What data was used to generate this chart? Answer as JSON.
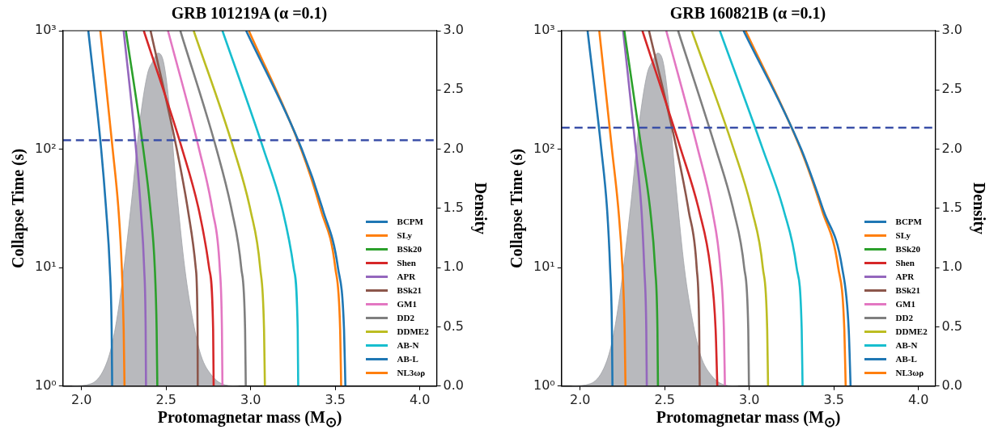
{
  "chart_data": [
    {
      "type": "line",
      "title": "GRB 101219A (α =0.1)",
      "xlabel": "Protomagnetar mass (M$_{⊙}$)",
      "ylabel": "Collapse Time (s)",
      "y2label": "Density",
      "xlim": [
        1.89,
        4.1
      ],
      "xticks": [
        {
          "value": 2,
          "label": "2.0"
        },
        {
          "value": 2.5,
          "label": "2.5"
        },
        {
          "value": 3,
          "label": "3.0"
        },
        {
          "value": 3.5,
          "label": "3.5"
        },
        {
          "value": 4,
          "label": "4.0"
        }
      ],
      "ylim": [
        1,
        1000
      ],
      "yticks": [
        {
          "value": 1,
          "label": "10⁰"
        },
        {
          "value": 10,
          "label": "10¹"
        },
        {
          "value": 100,
          "label": "10²"
        },
        {
          "value": 1000,
          "label": "10³"
        }
      ],
      "y2lim": [
        0,
        3
      ],
      "y2ticks": [
        {
          "value": 0,
          "label": "0.0"
        },
        {
          "value": 0.5,
          "label": "0.5"
        },
        {
          "value": 1,
          "label": "1.0"
        },
        {
          "value": 1.5,
          "label": "1.5"
        },
        {
          "value": 2,
          "label": "2.0"
        },
        {
          "value": 2.5,
          "label": "2.5"
        },
        {
          "value": 3,
          "label": "3.0"
        }
      ],
      "log": "y",
      "grid": false,
      "legend": "bottom right",
      "marker": "none",
      "line_style": "solid",
      "ref_lines": [
        {
          "axis": "y",
          "value": 119,
          "color": "#3a4fa8",
          "line_style": "dashed"
        }
      ],
      "series": [
        {
          "type": "area",
          "axis": "y2",
          "color": "#b8b9bd",
          "x": [
            1.944,
            2.056,
            2.135,
            2.183,
            2.23,
            2.294,
            2.341,
            2.389,
            2.421,
            2.452,
            2.484,
            2.516,
            2.563,
            2.611,
            2.659,
            2.706,
            2.77,
            2.849,
            2.929
          ],
          "values": [
            0,
            0.02,
            0.15,
            0.37,
            0.77,
            1.54,
            2.19,
            2.63,
            2.74,
            2.81,
            2.74,
            2.41,
            1.64,
            0.99,
            0.55,
            0.26,
            0.09,
            0.01,
            0
          ]
        },
        {
          "name": "BCPM",
          "color": "#1f77b4",
          "x": [
            2.04,
            2.116,
            2.146,
            2.167,
            2.178,
            2.181
          ],
          "values": [
            1000,
            100,
            30,
            10,
            3,
            1
          ]
        },
        {
          "name": "SLy",
          "color": "#ff7f0e",
          "x": [
            2.111,
            2.184,
            2.219,
            2.238,
            2.249,
            2.254
          ],
          "values": [
            1000,
            100,
            30,
            10,
            3,
            1
          ]
        },
        {
          "name": "BSk20",
          "color": "#2ca02c",
          "x": [
            2.262,
            2.365,
            2.408,
            2.433,
            2.444,
            2.448
          ],
          "values": [
            1000,
            100,
            30,
            10,
            3,
            1
          ]
        },
        {
          "name": "Shen",
          "color": "#d62728",
          "x": [
            2.368,
            2.595,
            2.695,
            2.754,
            2.778,
            2.781
          ],
          "values": [
            1000,
            100,
            30,
            10,
            3,
            1
          ]
        },
        {
          "name": "APR",
          "color": "#9467bd",
          "x": [
            2.249,
            2.322,
            2.351,
            2.37,
            2.379,
            2.381
          ],
          "values": [
            1000,
            100,
            30,
            10,
            3,
            1
          ]
        },
        {
          "name": "BSk21",
          "color": "#8c564b",
          "x": [
            2.408,
            2.563,
            2.63,
            2.675,
            2.686,
            2.687
          ],
          "values": [
            1000,
            100,
            30,
            10,
            3,
            1
          ]
        },
        {
          "name": "GM1",
          "color": "#e377c2",
          "x": [
            2.511,
            2.695,
            2.775,
            2.817,
            2.83,
            2.833
          ],
          "values": [
            1000,
            100,
            30,
            10,
            3,
            1
          ]
        },
        {
          "name": "DD2",
          "color": "#7f7f7f",
          "x": [
            2.584,
            2.798,
            2.889,
            2.944,
            2.967,
            2.971
          ],
          "values": [
            1000,
            100,
            30,
            10,
            3,
            1
          ]
        },
        {
          "name": "DDME2",
          "color": "#bcbd22",
          "x": [
            2.663,
            2.9,
            3.0,
            3.056,
            3.079,
            3.084
          ],
          "values": [
            1000,
            100,
            30,
            10,
            3,
            1
          ]
        },
        {
          "name": "AB-N",
          "color": "#17becf",
          "x": [
            2.833,
            3.076,
            3.19,
            3.254,
            3.278,
            3.281
          ],
          "values": [
            1000,
            100,
            30,
            10,
            3,
            1
          ]
        },
        {
          "name": "AB-L",
          "color": "#1f77b4",
          "x": [
            2.973,
            3.302,
            3.429,
            3.516,
            3.552,
            3.56
          ],
          "values": [
            1000,
            100,
            30,
            10,
            3,
            1
          ]
        },
        {
          "name": "NL3ωρ",
          "color": "#ff7f0e",
          "x": [
            2.989,
            3.298,
            3.417,
            3.5,
            3.529,
            3.535
          ],
          "values": [
            1000,
            100,
            30,
            10,
            3,
            1
          ]
        }
      ]
    },
    {
      "type": "line",
      "title": "GRB 160821B (α =0.1)",
      "xlabel": "Protomagnetar mass (M$_{⊙}$)",
      "ylabel": "Collapse Time (s)",
      "y2label": "Density",
      "xlim": [
        1.89,
        4.1
      ],
      "xticks": [
        {
          "value": 2,
          "label": "2.0"
        },
        {
          "value": 2.5,
          "label": "2.5"
        },
        {
          "value": 3,
          "label": "3.0"
        },
        {
          "value": 3.5,
          "label": "3.5"
        },
        {
          "value": 4,
          "label": "4.0"
        }
      ],
      "ylim": [
        1,
        1000
      ],
      "yticks": [
        {
          "value": 1,
          "label": "10⁰"
        },
        {
          "value": 10,
          "label": "10¹"
        },
        {
          "value": 100,
          "label": "10²"
        },
        {
          "value": 1000,
          "label": "10³"
        }
      ],
      "y2lim": [
        0,
        3
      ],
      "y2ticks": [
        {
          "value": 0,
          "label": "0.0"
        },
        {
          "value": 0.5,
          "label": "0.5"
        },
        {
          "value": 1,
          "label": "1.0"
        },
        {
          "value": 1.5,
          "label": "1.5"
        },
        {
          "value": 2,
          "label": "2.0"
        },
        {
          "value": 2.5,
          "label": "2.5"
        },
        {
          "value": 3,
          "label": "3.0"
        }
      ],
      "log": "y",
      "grid": false,
      "legend": "bottom right",
      "marker": "none",
      "line_style": "solid",
      "ref_lines": [
        {
          "axis": "y",
          "value": 152,
          "color": "#3a4fa8",
          "line_style": "dashed"
        }
      ],
      "series": [
        {
          "type": "area",
          "axis": "y2",
          "color": "#b8b9bd",
          "x": [
            1.95,
            2.06,
            2.14,
            2.188,
            2.235,
            2.3,
            2.347,
            2.395,
            2.427,
            2.458,
            2.49,
            2.522,
            2.57,
            2.617,
            2.665,
            2.712,
            2.776,
            2.855,
            2.935
          ],
          "values": [
            0,
            0.02,
            0.15,
            0.37,
            0.77,
            1.54,
            2.19,
            2.63,
            2.74,
            2.81,
            2.74,
            2.41,
            1.64,
            0.99,
            0.55,
            0.26,
            0.09,
            0.01,
            0
          ]
        },
        {
          "name": "BCPM",
          "color": "#1f77b4",
          "x": [
            2.044,
            2.125,
            2.16,
            2.177,
            2.188,
            2.191
          ],
          "values": [
            1000,
            100,
            30,
            10,
            3,
            1
          ]
        },
        {
          "name": "SLy",
          "color": "#ff7f0e",
          "x": [
            2.113,
            2.188,
            2.227,
            2.25,
            2.263,
            2.268
          ],
          "values": [
            1000,
            100,
            30,
            10,
            3,
            1
          ]
        },
        {
          "name": "BSk20",
          "color": "#2ca02c",
          "x": [
            2.261,
            2.363,
            2.415,
            2.443,
            2.457,
            2.46
          ],
          "values": [
            1000,
            100,
            30,
            10,
            3,
            1
          ]
        },
        {
          "name": "Shen",
          "color": "#d62728",
          "x": [
            2.368,
            2.595,
            2.704,
            2.77,
            2.801,
            2.811
          ],
          "values": [
            1000,
            100,
            30,
            10,
            3,
            1
          ]
        },
        {
          "name": "APR",
          "color": "#9467bd",
          "x": [
            2.254,
            2.329,
            2.363,
            2.379,
            2.391,
            2.394
          ],
          "values": [
            1000,
            100,
            30,
            10,
            3,
            1
          ]
        },
        {
          "name": "BSk21",
          "color": "#8c564b",
          "x": [
            2.407,
            2.571,
            2.642,
            2.689,
            2.704,
            2.707
          ],
          "values": [
            1000,
            100,
            30,
            10,
            3,
            1
          ]
        },
        {
          "name": "GM1",
          "color": "#e377c2",
          "x": [
            2.509,
            2.696,
            2.782,
            2.829,
            2.85,
            2.856
          ],
          "values": [
            1000,
            100,
            30,
            10,
            3,
            1
          ]
        },
        {
          "name": "DD2",
          "color": "#7f7f7f",
          "x": [
            2.579,
            2.803,
            2.908,
            2.97,
            2.994,
            2.998
          ],
          "values": [
            1000,
            100,
            30,
            10,
            3,
            1
          ]
        },
        {
          "name": "DDME2",
          "color": "#bcbd22",
          "x": [
            2.66,
            2.908,
            3.017,
            3.08,
            3.106,
            3.111
          ],
          "values": [
            1000,
            100,
            30,
            10,
            3,
            1
          ]
        },
        {
          "name": "AB-N",
          "color": "#17becf",
          "x": [
            2.826,
            3.08,
            3.205,
            3.28,
            3.31,
            3.315
          ],
          "values": [
            1000,
            100,
            30,
            10,
            3,
            1
          ]
        },
        {
          "name": "AB-L",
          "color": "#1f77b4",
          "x": [
            2.966,
            3.307,
            3.44,
            3.549,
            3.588,
            3.599
          ],
          "values": [
            1000,
            100,
            30,
            10,
            3,
            1
          ]
        },
        {
          "name": "NL3ωρ",
          "color": "#ff7f0e",
          "x": [
            2.978,
            3.304,
            3.432,
            3.526,
            3.562,
            3.57
          ],
          "values": [
            1000,
            100,
            30,
            10,
            3,
            1
          ]
        }
      ]
    }
  ]
}
